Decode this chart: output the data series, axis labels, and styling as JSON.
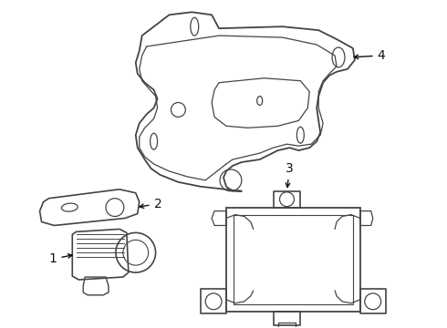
{
  "bg_color": "#ffffff",
  "line_color": "#444444",
  "lw": 1.2,
  "label_color": "#111111",
  "label_fs": 9
}
